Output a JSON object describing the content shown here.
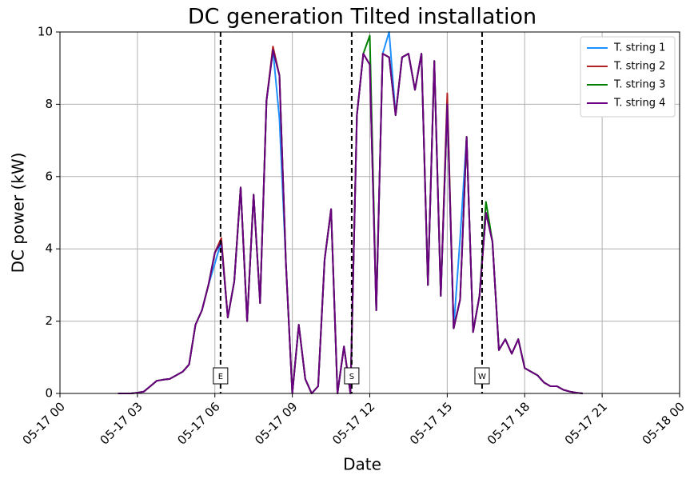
{
  "chart_data": {
    "type": "line",
    "title": "DC generation Tilted installation",
    "xlabel": "Date",
    "ylabel": "DC power (kW)",
    "x": [
      2.25,
      2.5,
      2.75,
      3,
      3.25,
      3.5,
      3.75,
      4,
      4.25,
      4.5,
      4.75,
      5,
      5.25,
      5.5,
      5.75,
      6,
      6.25,
      6.5,
      6.75,
      7,
      7.25,
      7.5,
      7.75,
      8,
      8.25,
      8.5,
      8.75,
      9,
      9.25,
      9.5,
      9.75,
      10,
      10.25,
      10.5,
      10.75,
      11,
      11.25,
      11.5,
      11.75,
      12,
      12.25,
      12.5,
      12.75,
      13,
      13.25,
      13.5,
      13.75,
      14,
      14.25,
      14.5,
      14.75,
      15,
      15.25,
      15.5,
      15.75,
      16,
      16.25,
      16.5,
      16.75,
      17,
      17.25,
      17.5,
      17.75,
      18,
      18.25,
      18.5,
      18.75,
      19,
      19.25,
      19.5,
      19.75,
      20,
      20.25
    ],
    "series": [
      {
        "name": "T. string 1",
        "color": "#1e90ff",
        "values": [
          0,
          0,
          0,
          0.02,
          0.05,
          0.2,
          0.35,
          0.38,
          0.4,
          0.5,
          0.6,
          0.8,
          1.9,
          2.3,
          3.0,
          3.6,
          4.2,
          2.1,
          3.1,
          5.7,
          2.0,
          5.5,
          2.5,
          8.1,
          9.5,
          7.6,
          3.6,
          0,
          1.9,
          0.4,
          0,
          0.2,
          3.7,
          5.1,
          0,
          1.3,
          0,
          7.7,
          9.4,
          9.1,
          2.3,
          9.4,
          10.0,
          7.7,
          9.3,
          9.4,
          8.4,
          9.4,
          3.0,
          9.2,
          2.7,
          8.0,
          1.8,
          4.3,
          7.1,
          1.7,
          2.7,
          5.0,
          4.2,
          1.2,
          1.5,
          1.1,
          1.5,
          0.7,
          0.6,
          0.5,
          0.3,
          0.2,
          0.2,
          0.1,
          0.05,
          0.02,
          0
        ]
      },
      {
        "name": "T. string 2",
        "color": "#b22222",
        "values": [
          0,
          0,
          0,
          0.02,
          0.05,
          0.2,
          0.35,
          0.38,
          0.4,
          0.5,
          0.6,
          0.8,
          1.9,
          2.3,
          3.0,
          3.9,
          4.3,
          2.1,
          3.1,
          5.7,
          2.0,
          5.5,
          2.5,
          8.1,
          9.6,
          8.8,
          3.6,
          0,
          1.9,
          0.4,
          0,
          0.2,
          3.7,
          5.1,
          0,
          1.3,
          0,
          7.7,
          9.4,
          9.1,
          2.3,
          9.4,
          9.3,
          7.7,
          9.3,
          9.4,
          8.4,
          9.4,
          3.0,
          9.2,
          2.7,
          8.3,
          1.8,
          2.6,
          7.1,
          1.7,
          2.7,
          5.0,
          4.2,
          1.2,
          1.5,
          1.1,
          1.5,
          0.7,
          0.6,
          0.5,
          0.3,
          0.2,
          0.2,
          0.1,
          0.05,
          0.02,
          0
        ]
      },
      {
        "name": "T. string 3",
        "color": "#008000",
        "values": [
          0,
          0,
          0,
          0.02,
          0.05,
          0.2,
          0.35,
          0.38,
          0.4,
          0.5,
          0.6,
          0.8,
          1.9,
          2.3,
          3.0,
          3.9,
          4.2,
          2.1,
          3.1,
          5.7,
          2.0,
          5.5,
          2.5,
          8.1,
          9.5,
          8.8,
          3.6,
          0,
          1.9,
          0.4,
          0,
          0.2,
          3.7,
          5.1,
          0,
          1.3,
          0,
          7.7,
          9.4,
          9.9,
          2.3,
          9.4,
          9.3,
          7.7,
          9.3,
          9.4,
          8.4,
          9.4,
          3.0,
          9.2,
          2.7,
          8.0,
          1.8,
          2.6,
          7.1,
          1.7,
          2.7,
          5.3,
          4.2,
          1.2,
          1.5,
          1.1,
          1.5,
          0.7,
          0.6,
          0.5,
          0.3,
          0.2,
          0.2,
          0.1,
          0.05,
          0.02,
          0
        ]
      },
      {
        "name": "T. string 4",
        "color": "#6a0080",
        "values": [
          0,
          0,
          0,
          0.02,
          0.05,
          0.2,
          0.35,
          0.38,
          0.4,
          0.5,
          0.6,
          0.8,
          1.9,
          2.3,
          3.0,
          3.9,
          4.2,
          2.1,
          3.1,
          5.7,
          2.0,
          5.5,
          2.5,
          8.1,
          9.5,
          8.8,
          3.6,
          0,
          1.9,
          0.4,
          0,
          0.2,
          3.7,
          5.1,
          0,
          1.3,
          0,
          7.7,
          9.4,
          9.1,
          2.3,
          9.4,
          9.3,
          7.7,
          9.3,
          9.4,
          8.4,
          9.4,
          3.0,
          9.2,
          2.7,
          8.0,
          1.8,
          2.6,
          7.1,
          1.7,
          2.7,
          5.0,
          4.2,
          1.2,
          1.5,
          1.1,
          1.5,
          0.7,
          0.6,
          0.5,
          0.3,
          0.2,
          0.2,
          0.1,
          0.05,
          0.02,
          0
        ]
      }
    ],
    "xlim": [
      0,
      24
    ],
    "xticks": [
      {
        "value": 0,
        "label": "05-17 00"
      },
      {
        "value": 3,
        "label": "05-17 03"
      },
      {
        "value": 6,
        "label": "05-17 06"
      },
      {
        "value": 9,
        "label": "05-17 09"
      },
      {
        "value": 12,
        "label": "05-17 12"
      },
      {
        "value": 15,
        "label": "05-17 15"
      },
      {
        "value": 18,
        "label": "05-17 18"
      },
      {
        "value": 21,
        "label": "05-17 21"
      },
      {
        "value": 24,
        "label": "05-18 00"
      }
    ],
    "ylim": [
      0,
      10
    ],
    "yticks": [
      0,
      2,
      4,
      6,
      8,
      10
    ],
    "grid": true,
    "legend": "upper right",
    "annotations": [
      {
        "x": 6.22,
        "label": "E"
      },
      {
        "x": 11.3,
        "label": "S"
      },
      {
        "x": 16.35,
        "label": "W"
      }
    ]
  }
}
